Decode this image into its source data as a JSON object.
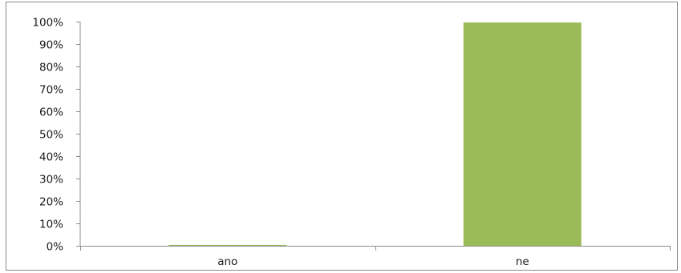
{
  "chart_data": {
    "type": "bar",
    "categories": [
      "ano",
      "ne"
    ],
    "values": [
      0.4,
      99.6
    ],
    "ylim": [
      0,
      100
    ],
    "y_ticks": [
      0,
      10,
      20,
      30,
      40,
      50,
      60,
      70,
      80,
      90,
      100
    ],
    "y_tick_labels": [
      "0%",
      "10%",
      "20%",
      "30%",
      "40%",
      "50%",
      "60%",
      "70%",
      "80%",
      "90%",
      "100%"
    ],
    "grid": false,
    "legend": "none",
    "bar_color": "#9bbb59"
  }
}
